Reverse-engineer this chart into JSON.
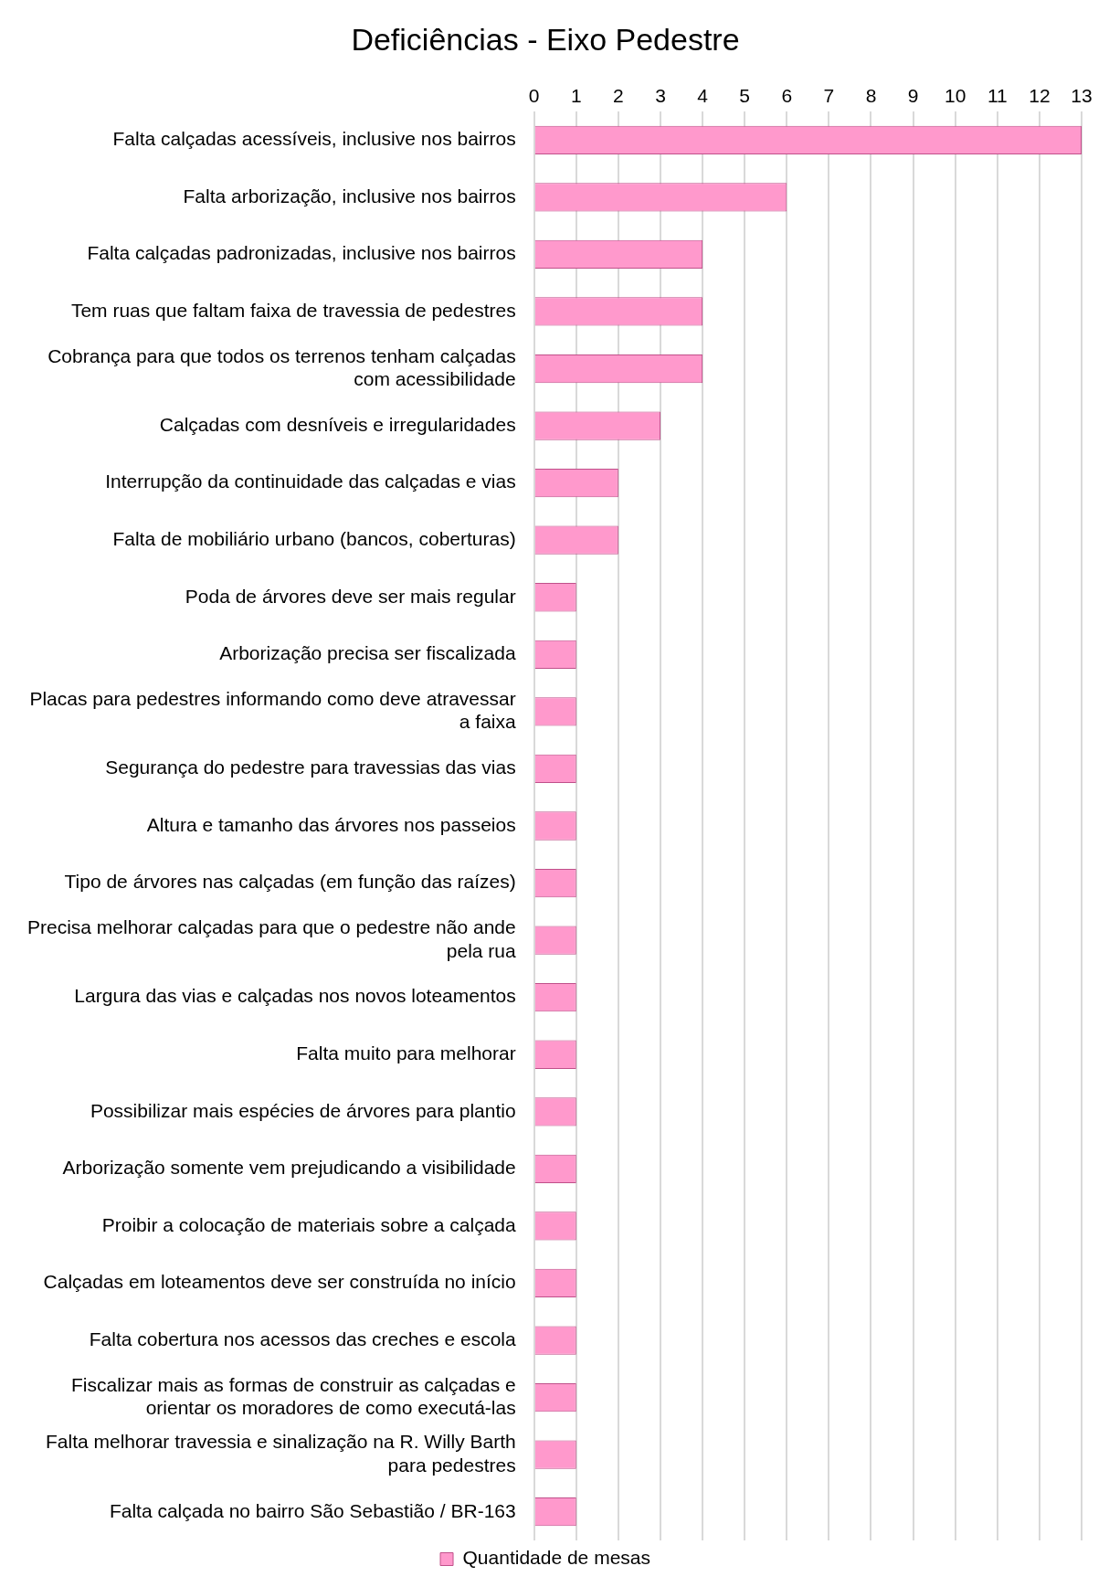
{
  "chart_data": {
    "type": "bar",
    "orientation": "horizontal",
    "title": "Deficiências - Eixo Pedestre",
    "categories": [
      "Falta calçadas acessíveis, inclusive nos bairros",
      "Falta arborização, inclusive nos bairros",
      "Falta calçadas padronizadas, inclusive nos bairros",
      "Tem ruas que faltam faixa de travessia de pedestres",
      "Cobrança para que todos os terrenos tenham calçadas com acessibilidade",
      "Calçadas com desníveis e irregularidades",
      "Interrupção da continuidade das calçadas e vias",
      "Falta de mobiliário urbano (bancos, coberturas)",
      "Poda de árvores deve ser mais regular",
      "Arborização precisa ser fiscalizada",
      "Placas para pedestres informando como deve atravessar a faixa",
      "Segurança do pedestre para travessias das vias",
      "Altura e tamanho das árvores nos passeios",
      "Tipo de árvores nas calçadas (em função das raízes)",
      "Precisa melhorar calçadas para que o pedestre não ande pela rua",
      "Largura das vias e calçadas nos novos loteamentos",
      "Falta muito para melhorar",
      "Possibilizar mais espécies de árvores para plantio",
      "Arborização somente vem prejudicando a visibilidade",
      "Proibir a colocação de materiais sobre a calçada",
      "Calçadas em loteamentos deve ser construída no início",
      "Falta cobertura nos acessos das creches e escola",
      "Fiscalizar mais as formas de construir as calçadas e orientar os moradores de como executá-las",
      "Falta melhorar travessia e sinalização na R. Willy Barth para pedestres",
      "Falta calçada no bairro São Sebastião / BR-163"
    ],
    "series": [
      {
        "name": "Quantidade de mesas",
        "color": "#ff99cc",
        "values": [
          13,
          6,
          4,
          4,
          4,
          3,
          2,
          2,
          1,
          1,
          1,
          1,
          1,
          1,
          1,
          1,
          1,
          1,
          1,
          1,
          1,
          1,
          1,
          1,
          1
        ]
      }
    ],
    "xlim": [
      0,
      13
    ],
    "xticks": [
      0,
      1,
      2,
      3,
      4,
      5,
      6,
      7,
      8,
      9,
      10,
      11,
      12,
      13
    ],
    "grid": "x",
    "legend": "bottom"
  }
}
